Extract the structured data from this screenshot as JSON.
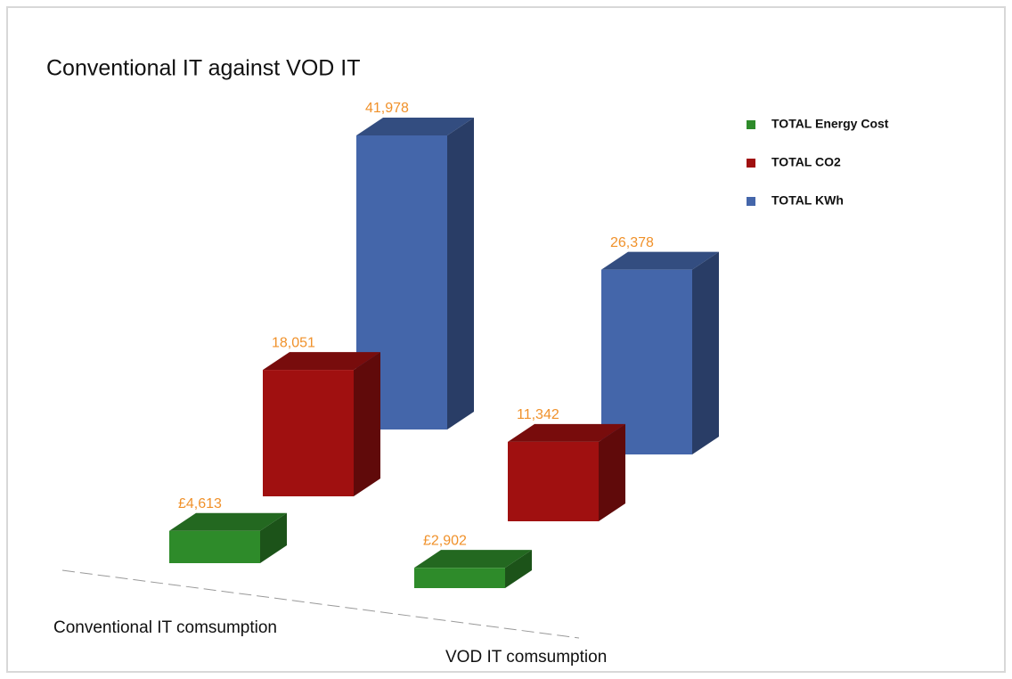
{
  "chart_data": {
    "type": "bar3d",
    "title": "Conventional IT against VOD IT",
    "categories": [
      "Conventional IT comsumption",
      "VOD IT comsumption"
    ],
    "series": [
      {
        "name": "TOTAL Energy Cost",
        "color": "#2e8b2a",
        "values": [
          4613,
          2902
        ],
        "value_labels": [
          "£4,613",
          "£2,902"
        ]
      },
      {
        "name": "TOTAL CO2",
        "color": "#a01010",
        "values": [
          18051,
          11342
        ],
        "value_labels": [
          "18,051",
          "11,342"
        ]
      },
      {
        "name": "TOTAL KWh",
        "color": "#4466aa",
        "values": [
          41978,
          26378
        ],
        "value_labels": [
          "41,978",
          "26,378"
        ]
      }
    ],
    "legend": "top-right"
  }
}
